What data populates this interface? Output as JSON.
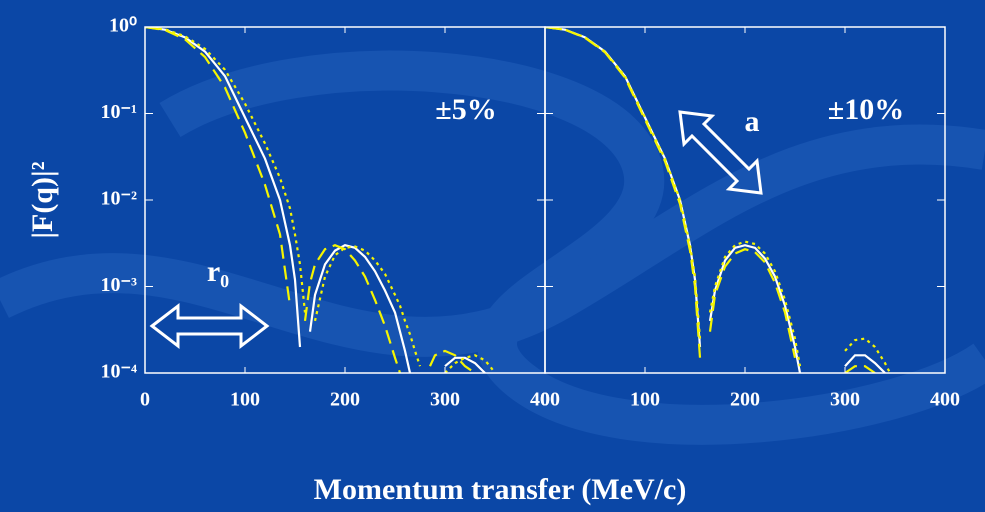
{
  "xlabel": "Momentum transfer (MeV/c)",
  "chart_data": [
    {
      "type": "line",
      "yscale": "log",
      "ylabel": "|F(q)|²",
      "annotations": [
        "±5%",
        "r₀"
      ],
      "xlim": [
        0,
        400
      ],
      "xticks": [
        0,
        100,
        200,
        300,
        400
      ],
      "ylim": [
        0.0001,
        1
      ],
      "yticks": [
        {
          "value": 1,
          "label": "10⁰"
        },
        {
          "value": 0.1,
          "label": "10⁻¹"
        },
        {
          "value": 0.01,
          "label": "10⁻²"
        },
        {
          "value": 0.001,
          "label": "10⁻³"
        },
        {
          "value": 0.0001,
          "label": "10⁻⁴"
        }
      ],
      "x": [
        0,
        20,
        40,
        60,
        80,
        100,
        120,
        135,
        145,
        150,
        155,
        160,
        165,
        170,
        180,
        190,
        200,
        210,
        220,
        230,
        240,
        250,
        255,
        260,
        265,
        270,
        275,
        280,
        285,
        290,
        300,
        310,
        320,
        330,
        340,
        345,
        350
      ],
      "series": [
        {
          "color": "#ffffff",
          "dash": "solid",
          "values": [
            1,
            0.93,
            0.76,
            0.52,
            0.27,
            0.09,
            0.03,
            0.01,
            0.003,
            0.0012,
            0.0002,
            null,
            0.0003,
            0.0008,
            0.0018,
            0.0026,
            0.003,
            0.0028,
            0.0022,
            0.0015,
            0.0009,
            0.0005,
            0.0003,
            0.00018,
            0.0001,
            null,
            null,
            null,
            null,
            null,
            0.00012,
            0.00015,
            0.00015,
            0.00013,
            0.0001,
            null,
            null
          ]
        },
        {
          "color": "#f5f500",
          "dash": "dashed",
          "values": [
            1,
            0.92,
            0.72,
            0.45,
            0.2,
            0.06,
            0.015,
            0.004,
            0.0006,
            null,
            null,
            0.0004,
            0.0011,
            0.0018,
            0.0027,
            0.003,
            0.0027,
            0.002,
            0.0013,
            0.0007,
            0.00035,
            0.00015,
            0.0001,
            null,
            null,
            null,
            null,
            null,
            0.00012,
            0.00016,
            0.00018,
            0.00016,
            0.00012,
            0.0001,
            null,
            null,
            null
          ]
        },
        {
          "color": "#f5f500",
          "dash": "dotted",
          "values": [
            1,
            0.94,
            0.78,
            0.56,
            0.32,
            0.13,
            0.045,
            0.018,
            0.008,
            0.004,
            0.0018,
            0.0005,
            null,
            0.0004,
            0.0013,
            0.0023,
            0.0028,
            0.0029,
            0.0026,
            0.002,
            0.0014,
            0.0008,
            0.0006,
            0.0004,
            0.00028,
            0.00018,
            0.00012,
            null,
            null,
            null,
            0.0001,
            0.00013,
            0.00015,
            0.00016,
            0.00014,
            0.00012,
            0.0001
          ]
        }
      ]
    },
    {
      "type": "line",
      "yscale": "log",
      "annotations": [
        "±10%",
        "a"
      ],
      "xlim": [
        0,
        400
      ],
      "xticks": [
        0,
        100,
        200,
        300,
        400
      ],
      "ylim": [
        0.0001,
        1
      ],
      "x": [
        0,
        20,
        40,
        60,
        80,
        100,
        120,
        135,
        145,
        150,
        155,
        160,
        165,
        170,
        180,
        190,
        200,
        210,
        220,
        230,
        240,
        250,
        255,
        260,
        265,
        270,
        275,
        280,
        285,
        290,
        300,
        310,
        320,
        330,
        340,
        345,
        350
      ],
      "series": [
        {
          "color": "#ffffff",
          "dash": "solid",
          "values": [
            1,
            0.93,
            0.76,
            0.52,
            0.27,
            0.09,
            0.03,
            0.01,
            0.003,
            0.0012,
            0.0002,
            null,
            0.0004,
            0.0009,
            0.002,
            0.0028,
            0.003,
            0.0028,
            0.0021,
            0.0013,
            0.0006,
            0.0002,
            0.0001,
            null,
            null,
            null,
            null,
            null,
            null,
            null,
            0.00012,
            0.00016,
            0.00016,
            0.00013,
            0.0001,
            null,
            null
          ]
        },
        {
          "color": "#f5f500",
          "dash": "dotted",
          "values": [
            1,
            0.93,
            0.76,
            0.52,
            0.27,
            0.09,
            0.03,
            0.01,
            0.003,
            0.0013,
            0.00025,
            null,
            0.0005,
            0.001,
            0.0022,
            0.003,
            0.0033,
            0.0031,
            0.0024,
            0.0015,
            0.0007,
            0.00025,
            0.00012,
            null,
            null,
            null,
            null,
            null,
            null,
            null,
            0.00018,
            0.00024,
            0.00025,
            0.0002,
            0.00013,
            0.0001,
            null
          ]
        },
        {
          "color": "#f5f500",
          "dash": "dashed",
          "values": [
            1,
            0.93,
            0.75,
            0.51,
            0.26,
            0.085,
            0.028,
            0.009,
            0.0026,
            0.001,
            0.00015,
            null,
            0.0003,
            0.0008,
            0.0017,
            0.0024,
            0.0027,
            0.0025,
            0.0019,
            0.0011,
            0.0005,
            0.00015,
            null,
            null,
            null,
            null,
            null,
            null,
            null,
            null,
            0.0001,
            0.00012,
            0.00012,
            0.0001,
            null,
            null,
            null
          ]
        }
      ]
    }
  ]
}
